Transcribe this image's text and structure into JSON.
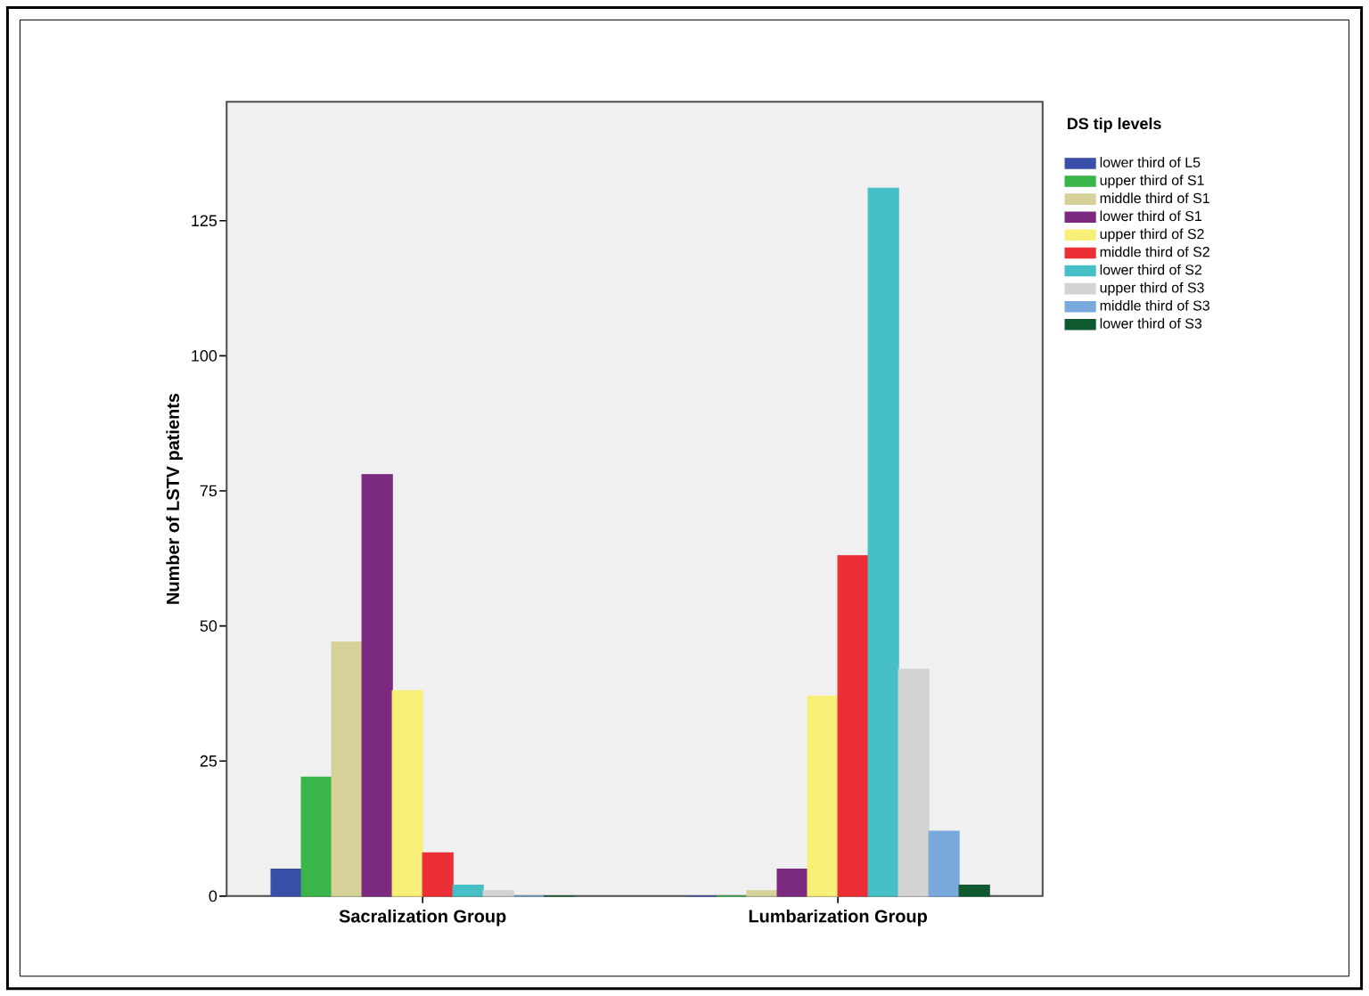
{
  "chart_data": {
    "type": "bar",
    "ylabel": "Number of LSTV patients",
    "legend_title": "DS tip levels",
    "categories": [
      "Sacralization Group",
      "Lumbarization Group"
    ],
    "series": [
      {
        "name": "lower third of L5",
        "color": "#3a4fa8",
        "values": [
          5,
          0
        ]
      },
      {
        "name": "upper third of S1",
        "color": "#3ab54a",
        "values": [
          22,
          0
        ]
      },
      {
        "name": "middle third of S1",
        "color": "#d6d099",
        "values": [
          47,
          1
        ]
      },
      {
        "name": "lower third of S1",
        "color": "#7b2a7f",
        "values": [
          78,
          5
        ]
      },
      {
        "name": "upper third of S2",
        "color": "#f8ef78",
        "values": [
          38,
          37
        ]
      },
      {
        "name": "middle third of S2",
        "color": "#ec2e36",
        "values": [
          8,
          63
        ]
      },
      {
        "name": "lower third of S2",
        "color": "#46c0c6",
        "values": [
          2,
          131
        ]
      },
      {
        "name": "upper third of S3",
        "color": "#d3d3d3",
        "values": [
          1,
          42
        ]
      },
      {
        "name": "middle third of S3",
        "color": "#79a9dc",
        "values": [
          0,
          12
        ]
      },
      {
        "name": "lower third of S3",
        "color": "#0f5a2e",
        "values": [
          0,
          2
        ]
      }
    ],
    "ylim": [
      0,
      147
    ],
    "yticks": [
      0,
      25,
      50,
      75,
      100,
      125
    ],
    "grid": false,
    "legend": "right"
  }
}
